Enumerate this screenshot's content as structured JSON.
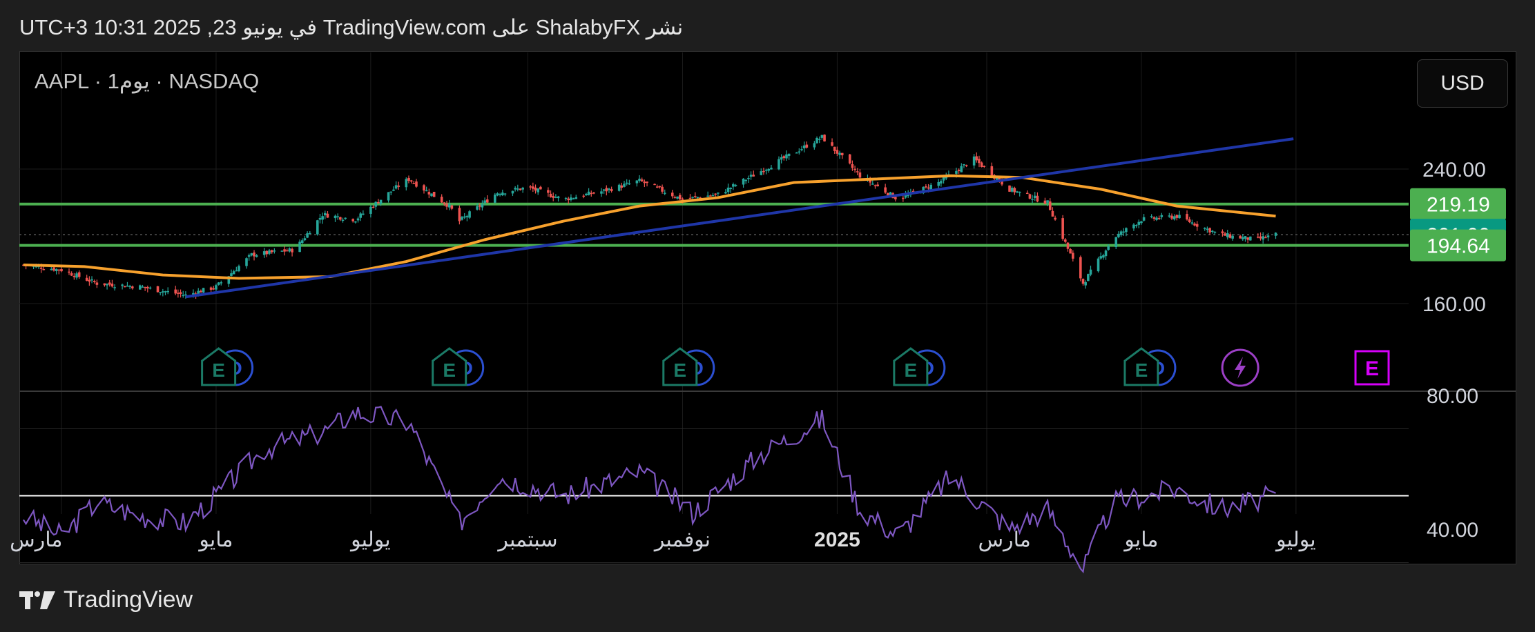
{
  "header": {
    "published": "نشر ShalabyFX على TradingView.com في يونيو 23, 2025 10:31 UTC+3"
  },
  "symbol": {
    "label": "AAPL · 1يوم · NASDAQ"
  },
  "currency": {
    "label": "USD"
  },
  "footer": {
    "brand": "TradingView"
  },
  "colors": {
    "background": "#000000",
    "up": "#26a69a",
    "down": "#ef5350",
    "ma": "#f7a12d",
    "trendline": "#1f36a8",
    "hline": "#4caf50",
    "rsi": "#7e57c2",
    "rsi_level": "#ffffff",
    "last_price": "#089981",
    "earnings": "#1b7a66",
    "dividends": "#2b4fd1",
    "event": "#9c3fc6",
    "event_e": "#d500f9"
  },
  "chart_data": {
    "type": "candlestick",
    "title": "",
    "symbol": "AAPL",
    "interval": "1D",
    "exchange": "NASDAQ",
    "price_axis": {
      "ticks": [
        160,
        240
      ],
      "tick_labels": [
        "160.00",
        "240.00"
      ]
    },
    "time_axis": {
      "labels": [
        "مارس",
        "مايو",
        "يوليو",
        "سبتمبر",
        "نوفمبر",
        "2025",
        "مارس",
        "مايو",
        "يوليو"
      ]
    },
    "price_tags": [
      {
        "value": 219.19,
        "label": "219.19",
        "kind": "horizontal-line"
      },
      {
        "value": 201.0,
        "label": "201.00",
        "kind": "last-price"
      },
      {
        "value": 194.64,
        "label": "194.64",
        "kind": "horizontal-line"
      }
    ],
    "horizontal_lines": [
      219.19,
      194.64
    ],
    "trendline": {
      "from": [
        "2024-04-19",
        164
      ],
      "to": [
        "2025-06-30",
        258
      ]
    },
    "moving_average_path": [
      [
        "2024-02-15",
        183
      ],
      [
        "2024-03-10",
        182
      ],
      [
        "2024-04-10",
        177
      ],
      [
        "2024-05-10",
        175
      ],
      [
        "2024-06-15",
        176
      ],
      [
        "2024-07-15",
        185
      ],
      [
        "2024-08-15",
        198
      ],
      [
        "2024-09-15",
        209
      ],
      [
        "2024-10-15",
        218
      ],
      [
        "2024-11-15",
        223
      ],
      [
        "2024-12-15",
        232
      ],
      [
        "2025-01-15",
        234
      ],
      [
        "2025-02-15",
        236
      ],
      [
        "2025-03-15",
        235
      ],
      [
        "2025-04-15",
        228
      ],
      [
        "2025-05-15",
        218
      ],
      [
        "2025-06-23",
        212
      ]
    ],
    "close_path": [
      [
        "2024-02-15",
        183
      ],
      [
        "2024-03-01",
        180
      ],
      [
        "2024-03-15",
        172
      ],
      [
        "2024-04-01",
        170
      ],
      [
        "2024-04-19",
        165
      ],
      [
        "2024-05-01",
        170
      ],
      [
        "2024-05-15",
        189
      ],
      [
        "2024-06-01",
        192
      ],
      [
        "2024-06-12",
        213
      ],
      [
        "2024-06-25",
        210
      ],
      [
        "2024-07-10",
        228
      ],
      [
        "2024-07-16",
        234
      ],
      [
        "2024-08-01",
        218
      ],
      [
        "2024-08-05",
        209
      ],
      [
        "2024-08-20",
        226
      ],
      [
        "2024-09-01",
        229
      ],
      [
        "2024-09-15",
        222
      ],
      [
        "2024-10-01",
        227
      ],
      [
        "2024-10-15",
        233
      ],
      [
        "2024-11-01",
        222
      ],
      [
        "2024-11-15",
        225
      ],
      [
        "2024-12-01",
        238
      ],
      [
        "2024-12-26",
        259
      ],
      [
        "2025-01-10",
        236
      ],
      [
        "2025-01-25",
        222
      ],
      [
        "2025-02-10",
        232
      ],
      [
        "2025-02-24",
        246
      ],
      [
        "2025-03-10",
        228
      ],
      [
        "2025-03-25",
        220
      ],
      [
        "2025-04-08",
        172
      ],
      [
        "2025-04-20",
        199
      ],
      [
        "2025-05-01",
        210
      ],
      [
        "2025-05-15",
        212
      ],
      [
        "2025-06-01",
        201
      ],
      [
        "2025-06-15",
        198
      ],
      [
        "2025-06-23",
        201
      ]
    ],
    "rsi": {
      "levels": [
        70,
        50,
        30
      ],
      "tick_labels": [
        "80.00",
        "40.00"
      ],
      "path": [
        [
          "2024-02-15",
          44
        ],
        [
          "2024-03-01",
          38
        ],
        [
          "2024-03-15",
          48
        ],
        [
          "2024-04-01",
          44
        ],
        [
          "2024-04-19",
          42
        ],
        [
          "2024-05-01",
          50
        ],
        [
          "2024-05-20",
          64
        ],
        [
          "2024-06-12",
          69
        ],
        [
          "2024-06-25",
          75
        ],
        [
          "2024-07-16",
          72
        ],
        [
          "2024-08-05",
          42
        ],
        [
          "2024-08-20",
          56
        ],
        [
          "2024-09-15",
          50
        ],
        [
          "2024-10-15",
          57
        ],
        [
          "2024-11-05",
          45
        ],
        [
          "2024-12-01",
          62
        ],
        [
          "2024-12-26",
          73
        ],
        [
          "2025-01-10",
          46
        ],
        [
          "2025-01-25",
          38
        ],
        [
          "2025-02-15",
          56
        ],
        [
          "2025-03-10",
          40
        ],
        [
          "2025-03-25",
          46
        ],
        [
          "2025-04-08",
          28
        ],
        [
          "2025-04-20",
          48
        ],
        [
          "2025-05-15",
          52
        ],
        [
          "2025-06-01",
          46
        ],
        [
          "2025-06-23",
          50
        ]
      ]
    },
    "events": [
      {
        "date": "2024-05-02",
        "types": [
          "E",
          "D"
        ]
      },
      {
        "date": "2024-08-01",
        "types": [
          "E",
          "D"
        ]
      },
      {
        "date": "2024-10-31",
        "types": [
          "E",
          "D"
        ]
      },
      {
        "date": "2025-01-30",
        "types": [
          "E",
          "D"
        ]
      },
      {
        "date": "2025-05-01",
        "types": [
          "E",
          "D"
        ]
      },
      {
        "date": "2025-06-09",
        "types": [
          "event"
        ]
      },
      {
        "date": "2025-07-31",
        "types": [
          "E"
        ]
      }
    ]
  }
}
